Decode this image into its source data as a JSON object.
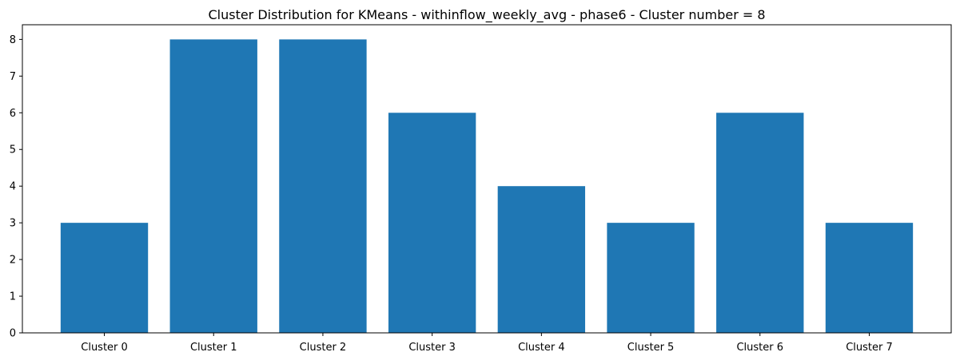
{
  "chart_data": {
    "type": "bar",
    "title": "Cluster Distribution for KMeans - withinflow_weekly_avg - phase6 - Cluster number = 8",
    "xlabel": "",
    "ylabel": "",
    "categories": [
      "Cluster 0",
      "Cluster 1",
      "Cluster 2",
      "Cluster 3",
      "Cluster 4",
      "Cluster 5",
      "Cluster 6",
      "Cluster 7"
    ],
    "values": [
      3,
      8,
      8,
      6,
      4,
      3,
      6,
      3
    ],
    "ylim": [
      0,
      8.4
    ],
    "yticks": [
      0,
      1,
      2,
      3,
      4,
      5,
      6,
      7,
      8
    ],
    "grid": false,
    "bar_color": "#1f77b4"
  }
}
